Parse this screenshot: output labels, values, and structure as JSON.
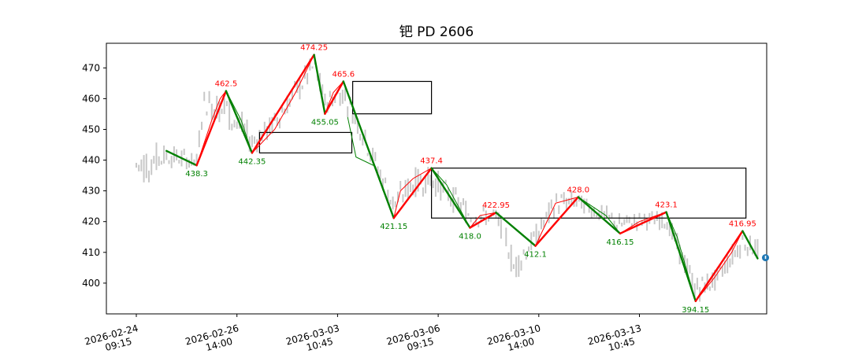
{
  "chart_data": {
    "type": "line",
    "title": "钯 PD 2606",
    "xlabel": "",
    "ylabel": "",
    "ylim": [
      390,
      478
    ],
    "grid": false,
    "colors": {
      "up": "#ff0000",
      "down": "#008000",
      "price": "#c8c8c8",
      "info": "#1f77b4"
    },
    "x_ticks": [
      {
        "index": 0,
        "date": "2026-02-24",
        "time": "09:15"
      },
      {
        "index": 120,
        "date": "2026-02-26",
        "time": "14:00"
      },
      {
        "index": 240,
        "date": "2026-03-03",
        "time": "10:45"
      },
      {
        "index": 360,
        "date": "2026-03-06",
        "time": "09:15"
      },
      {
        "index": 480,
        "date": "2026-03-10",
        "time": "14:00"
      },
      {
        "index": 600,
        "date": "2026-03-13",
        "time": "10:45"
      }
    ],
    "y_ticks": [
      400,
      410,
      420,
      430,
      440,
      450,
      460,
      470
    ],
    "pivots": [
      {
        "index": 36,
        "value": 443.0
      },
      {
        "index": 72,
        "value": 438.3,
        "label": "438.3",
        "kind": "low"
      },
      {
        "index": 107,
        "value": 462.5,
        "label": "462.5",
        "kind": "high"
      },
      {
        "index": 138,
        "value": 442.35,
        "label": "442.35",
        "kind": "low"
      },
      {
        "index": 212,
        "value": 474.25,
        "label": "474.25",
        "kind": "high"
      },
      {
        "index": 225,
        "value": 455.05,
        "label": "455.05",
        "kind": "low"
      },
      {
        "index": 247,
        "value": 465.6,
        "label": "465.6",
        "kind": "high"
      },
      {
        "index": 307,
        "value": 421.15,
        "label": "421.15",
        "kind": "low"
      },
      {
        "index": 352,
        "value": 437.4,
        "label": "437.4",
        "kind": "high"
      },
      {
        "index": 398,
        "value": 418.0,
        "label": "418.0",
        "kind": "low"
      },
      {
        "index": 429,
        "value": 422.95,
        "label": "422.95",
        "kind": "high"
      },
      {
        "index": 476,
        "value": 412.1,
        "label": "412.1",
        "kind": "low"
      },
      {
        "index": 527,
        "value": 428.0,
        "label": "428.0",
        "kind": "high"
      },
      {
        "index": 577,
        "value": 416.15,
        "label": "416.15",
        "kind": "low"
      },
      {
        "index": 632,
        "value": 423.1,
        "label": "423.1",
        "kind": "high"
      },
      {
        "index": 667,
        "value": 394.15,
        "label": "394.15",
        "kind": "low"
      },
      {
        "index": 723,
        "value": 416.95,
        "label": "416.95",
        "kind": "high"
      },
      {
        "index": 741,
        "value": 408.0
      }
    ],
    "thin_lines": [
      {
        "color": "#ff0000",
        "points": [
          [
            72,
            438.3
          ],
          [
            90,
            453
          ],
          [
            100,
            460
          ],
          [
            107,
            462.5
          ]
        ]
      },
      {
        "color": "#ff0000",
        "points": [
          [
            138,
            442.35
          ],
          [
            165,
            450
          ],
          [
            190,
            462
          ],
          [
            212,
            474.25
          ]
        ]
      },
      {
        "color": "#ff0000",
        "points": [
          [
            225,
            455.05
          ],
          [
            235,
            462
          ],
          [
            247,
            465.6
          ]
        ]
      },
      {
        "color": "#ff0000",
        "points": [
          [
            307,
            421.15
          ],
          [
            315,
            430
          ],
          [
            330,
            434
          ],
          [
            352,
            437.4
          ]
        ]
      },
      {
        "color": "#ff0000",
        "points": [
          [
            398,
            418.0
          ],
          [
            410,
            422
          ],
          [
            429,
            422.95
          ]
        ]
      },
      {
        "color": "#ff0000",
        "points": [
          [
            476,
            412.1
          ],
          [
            500,
            426
          ],
          [
            527,
            428.0
          ]
        ]
      },
      {
        "color": "#ff0000",
        "points": [
          [
            577,
            416.15
          ],
          [
            600,
            420
          ],
          [
            632,
            423.1
          ]
        ]
      },
      {
        "color": "#ff0000",
        "points": [
          [
            667,
            394.15
          ],
          [
            690,
            402
          ],
          [
            710,
            410
          ],
          [
            723,
            416.95
          ]
        ]
      },
      {
        "color": "#008000",
        "points": [
          [
            107,
            462.5
          ],
          [
            125,
            453
          ],
          [
            138,
            442.35
          ]
        ]
      },
      {
        "color": "#008000",
        "points": [
          [
            252,
            454
          ],
          [
            262,
            441
          ],
          [
            285,
            438
          ],
          [
            307,
            421.15
          ]
        ]
      },
      {
        "color": "#008000",
        "points": [
          [
            352,
            437.4
          ],
          [
            370,
            432
          ],
          [
            398,
            418.0
          ]
        ]
      },
      {
        "color": "#008000",
        "points": [
          [
            527,
            428.0
          ],
          [
            560,
            422
          ],
          [
            577,
            416.15
          ]
        ]
      },
      {
        "color": "#008000",
        "points": [
          [
            632,
            423.1
          ],
          [
            645,
            415
          ],
          [
            667,
            394.15
          ]
        ]
      }
    ],
    "boxes": [
      {
        "i0": 147,
        "i1": 257,
        "v0": 442.35,
        "v1": 449.0
      },
      {
        "i0": 258,
        "i1": 352,
        "v0": 455.05,
        "v1": 465.6
      },
      {
        "i0": 352,
        "i1": 727,
        "v0": 421.15,
        "v1": 437.4
      }
    ],
    "price_range": [
      [
        0,
        430,
        446
      ],
      [
        36,
        438,
        445
      ],
      [
        72,
        437,
        442
      ],
      [
        80,
        455,
        463
      ],
      [
        107,
        450,
        463
      ],
      [
        138,
        442,
        450
      ],
      [
        160,
        447,
        454
      ],
      [
        212,
        466,
        475
      ],
      [
        225,
        456,
        462
      ],
      [
        247,
        458,
        466
      ],
      [
        270,
        445,
        452
      ],
      [
        307,
        421,
        430
      ],
      [
        330,
        428,
        437
      ],
      [
        352,
        430,
        438
      ],
      [
        398,
        418,
        426
      ],
      [
        429,
        419,
        424
      ],
      [
        440,
        412,
        420
      ],
      [
        450,
        400,
        410
      ],
      [
        476,
        412,
        418
      ],
      [
        500,
        422,
        430
      ],
      [
        527,
        424,
        429
      ],
      [
        577,
        416,
        422
      ],
      [
        600,
        418,
        423
      ],
      [
        632,
        418,
        423
      ],
      [
        667,
        394,
        402
      ],
      [
        690,
        398,
        404
      ],
      [
        723,
        410,
        417
      ],
      [
        741,
        408,
        414
      ]
    ]
  }
}
